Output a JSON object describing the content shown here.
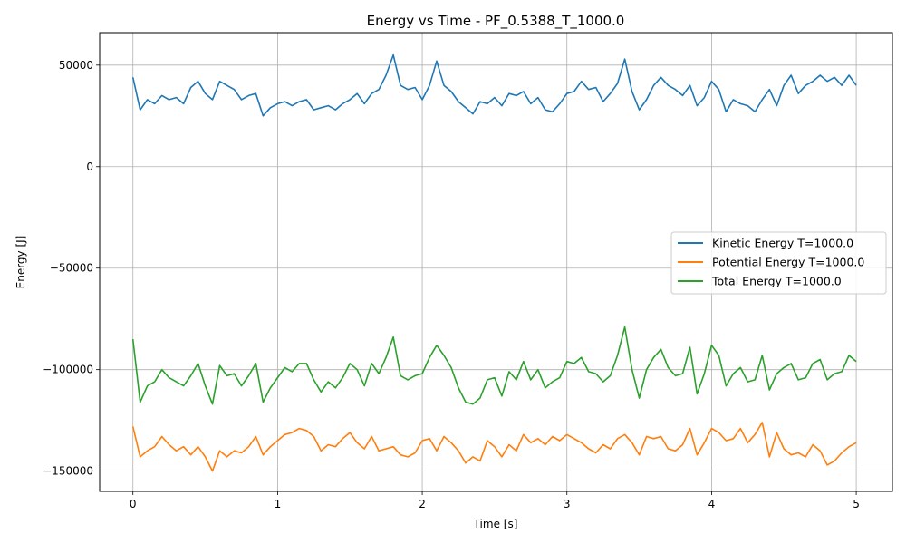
{
  "chart_data": {
    "type": "line",
    "title": "Energy vs Time - PF_0.5388_T_1000.0",
    "xlabel": "Time [s]",
    "ylabel": "Energy [J]",
    "xlim": [
      -0.23,
      5.25
    ],
    "ylim": [
      -160000,
      66000
    ],
    "xticks": [
      0,
      1,
      2,
      3,
      4,
      5
    ],
    "xtick_labels": [
      "0",
      "1",
      "2",
      "3",
      "4",
      "5"
    ],
    "yticks": [
      50000,
      0,
      -50000,
      -100000,
      -150000
    ],
    "ytick_labels": [
      "50000",
      "0",
      "−50000",
      "−100000",
      "−150000"
    ],
    "grid": true,
    "legend_position": "center-right",
    "series": [
      {
        "name": "Kinetic Energy T=1000.0",
        "color": "#1f77b4",
        "x": [
          0,
          0.05,
          0.1,
          0.15,
          0.2,
          0.25,
          0.3,
          0.35,
          0.4,
          0.45,
          0.5,
          0.55,
          0.6,
          0.65,
          0.7,
          0.75,
          0.8,
          0.85,
          0.9,
          0.95,
          1.0,
          1.05,
          1.1,
          1.15,
          1.2,
          1.25,
          1.3,
          1.35,
          1.4,
          1.45,
          1.5,
          1.55,
          1.6,
          1.65,
          1.7,
          1.75,
          1.8,
          1.85,
          1.9,
          1.95,
          2.0,
          2.05,
          2.1,
          2.15,
          2.2,
          2.25,
          2.3,
          2.35,
          2.4,
          2.45,
          2.5,
          2.55,
          2.6,
          2.65,
          2.7,
          2.75,
          2.8,
          2.85,
          2.9,
          2.95,
          3.0,
          3.05,
          3.1,
          3.15,
          3.2,
          3.25,
          3.3,
          3.35,
          3.4,
          3.45,
          3.5,
          3.55,
          3.6,
          3.65,
          3.7,
          3.75,
          3.8,
          3.85,
          3.9,
          3.95,
          4.0,
          4.05,
          4.1,
          4.15,
          4.2,
          4.25,
          4.3,
          4.35,
          4.4,
          4.45,
          4.5,
          4.55,
          4.6,
          4.65,
          4.7,
          4.75,
          4.8,
          4.85,
          4.9,
          4.95,
          5.0
        ],
        "y": [
          44000,
          28000,
          33000,
          31000,
          35000,
          33000,
          34000,
          31000,
          39000,
          42000,
          36000,
          33000,
          42000,
          40000,
          38000,
          33000,
          35000,
          36000,
          25000,
          29000,
          31000,
          32000,
          30000,
          32000,
          33000,
          28000,
          29000,
          30000,
          28000,
          31000,
          33000,
          36000,
          31000,
          36000,
          38000,
          45000,
          55000,
          40000,
          38000,
          39000,
          33000,
          40000,
          52000,
          40000,
          37000,
          32000,
          29000,
          26000,
          32000,
          31000,
          34000,
          30000,
          36000,
          35000,
          37000,
          31000,
          34000,
          28000,
          27000,
          31000,
          36000,
          37000,
          42000,
          38000,
          39000,
          32000,
          36000,
          41000,
          53000,
          37000,
          28000,
          33000,
          40000,
          44000,
          40000,
          38000,
          35000,
          40000,
          30000,
          34000,
          42000,
          38000,
          27000,
          33000,
          31000,
          30000,
          27000,
          33000,
          38000,
          30000,
          40000,
          45000,
          36000,
          40000,
          42000,
          45000,
          42000,
          44000,
          40000,
          45000,
          40000
        ]
      },
      {
        "name": "Potential Energy T=1000.0",
        "color": "#ff7f0e",
        "x": [
          0,
          0.05,
          0.1,
          0.15,
          0.2,
          0.25,
          0.3,
          0.35,
          0.4,
          0.45,
          0.5,
          0.55,
          0.6,
          0.65,
          0.7,
          0.75,
          0.8,
          0.85,
          0.9,
          0.95,
          1.0,
          1.05,
          1.1,
          1.15,
          1.2,
          1.25,
          1.3,
          1.35,
          1.4,
          1.45,
          1.5,
          1.55,
          1.6,
          1.65,
          1.7,
          1.75,
          1.8,
          1.85,
          1.9,
          1.95,
          2.0,
          2.05,
          2.1,
          2.15,
          2.2,
          2.25,
          2.3,
          2.35,
          2.4,
          2.45,
          2.5,
          2.55,
          2.6,
          2.65,
          2.7,
          2.75,
          2.8,
          2.85,
          2.9,
          2.95,
          3.0,
          3.05,
          3.1,
          3.15,
          3.2,
          3.25,
          3.3,
          3.35,
          3.4,
          3.45,
          3.5,
          3.55,
          3.6,
          3.65,
          3.7,
          3.75,
          3.8,
          3.85,
          3.9,
          3.95,
          4.0,
          4.05,
          4.1,
          4.15,
          4.2,
          4.25,
          4.3,
          4.35,
          4.4,
          4.45,
          4.5,
          4.55,
          4.6,
          4.65,
          4.7,
          4.75,
          4.8,
          4.85,
          4.9,
          4.95,
          5.0
        ],
        "y": [
          -128000,
          -143000,
          -140000,
          -138000,
          -133000,
          -137000,
          -140000,
          -138000,
          -142000,
          -138000,
          -143000,
          -150000,
          -140000,
          -143000,
          -140000,
          -141000,
          -138000,
          -133000,
          -142000,
          -138000,
          -135000,
          -132000,
          -131000,
          -129000,
          -130000,
          -133000,
          -140000,
          -137000,
          -138000,
          -134000,
          -131000,
          -136000,
          -139000,
          -133000,
          -140000,
          -139000,
          -138000,
          -142000,
          -143000,
          -141000,
          -135000,
          -134000,
          -140000,
          -133000,
          -136000,
          -140000,
          -146000,
          -143000,
          -145000,
          -135000,
          -138000,
          -143000,
          -137000,
          -140000,
          -132000,
          -136000,
          -134000,
          -137000,
          -133000,
          -135000,
          -132000,
          -134000,
          -136000,
          -139000,
          -141000,
          -137000,
          -139000,
          -134000,
          -132000,
          -136000,
          -142000,
          -133000,
          -134000,
          -133000,
          -139000,
          -140000,
          -137000,
          -129000,
          -142000,
          -136000,
          -129000,
          -131000,
          -135000,
          -134000,
          -129000,
          -136000,
          -132000,
          -126000,
          -143000,
          -131000,
          -139000,
          -142000,
          -141000,
          -143000,
          -137000,
          -140000,
          -147000,
          -145000,
          -141000,
          -138000,
          -136000
        ]
      },
      {
        "name": "Total Energy T=1000.0",
        "color": "#2ca02c",
        "x": [
          0,
          0.05,
          0.1,
          0.15,
          0.2,
          0.25,
          0.3,
          0.35,
          0.4,
          0.45,
          0.5,
          0.55,
          0.6,
          0.65,
          0.7,
          0.75,
          0.8,
          0.85,
          0.9,
          0.95,
          1.0,
          1.05,
          1.1,
          1.15,
          1.2,
          1.25,
          1.3,
          1.35,
          1.4,
          1.45,
          1.5,
          1.55,
          1.6,
          1.65,
          1.7,
          1.75,
          1.8,
          1.85,
          1.9,
          1.95,
          2.0,
          2.05,
          2.1,
          2.15,
          2.2,
          2.25,
          2.3,
          2.35,
          2.4,
          2.45,
          2.5,
          2.55,
          2.6,
          2.65,
          2.7,
          2.75,
          2.8,
          2.85,
          2.9,
          2.95,
          3.0,
          3.05,
          3.1,
          3.15,
          3.2,
          3.25,
          3.3,
          3.35,
          3.4,
          3.45,
          3.5,
          3.55,
          3.6,
          3.65,
          3.7,
          3.75,
          3.8,
          3.85,
          3.9,
          3.95,
          4.0,
          4.05,
          4.1,
          4.15,
          4.2,
          4.25,
          4.3,
          4.35,
          4.4,
          4.45,
          4.5,
          4.55,
          4.6,
          4.65,
          4.7,
          4.75,
          4.8,
          4.85,
          4.9,
          4.95,
          5.0
        ],
        "y": [
          -85000,
          -116000,
          -108000,
          -106000,
          -100000,
          -104000,
          -106000,
          -108000,
          -103000,
          -97000,
          -108000,
          -117000,
          -98000,
          -103000,
          -102000,
          -108000,
          -103000,
          -97000,
          -116000,
          -109000,
          -104000,
          -99000,
          -101000,
          -97000,
          -97000,
          -105000,
          -111000,
          -106000,
          -109000,
          -104000,
          -97000,
          -100000,
          -108000,
          -97000,
          -102000,
          -94000,
          -84000,
          -103000,
          -105000,
          -103000,
          -102000,
          -94000,
          -88000,
          -93000,
          -99000,
          -109000,
          -116000,
          -117000,
          -114000,
          -105000,
          -104000,
          -113000,
          -101000,
          -105000,
          -96000,
          -105000,
          -100000,
          -109000,
          -106000,
          -104000,
          -96000,
          -97000,
          -94000,
          -101000,
          -102000,
          -106000,
          -103000,
          -93000,
          -79000,
          -100000,
          -114000,
          -100000,
          -94000,
          -90000,
          -99000,
          -103000,
          -102000,
          -89000,
          -112000,
          -102000,
          -88000,
          -93000,
          -108000,
          -102000,
          -99000,
          -106000,
          -105000,
          -93000,
          -110000,
          -102000,
          -99000,
          -97000,
          -105000,
          -104000,
          -97000,
          -95000,
          -105000,
          -102000,
          -101000,
          -93000,
          -96000
        ]
      }
    ]
  }
}
